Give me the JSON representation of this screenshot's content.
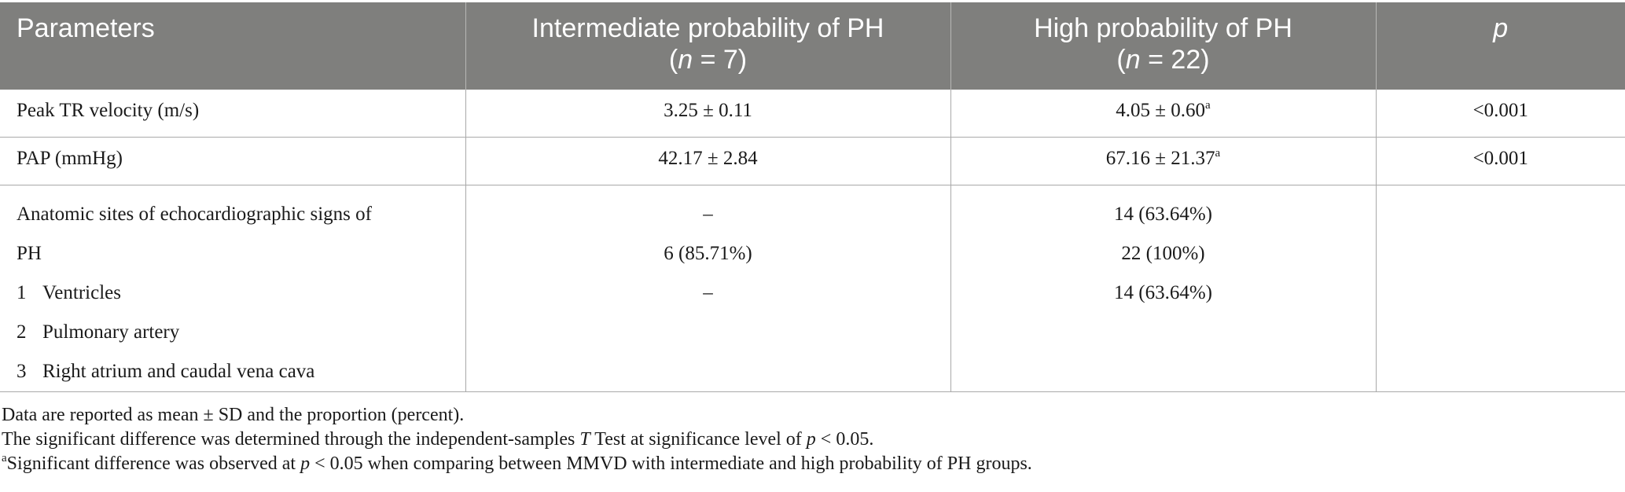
{
  "table": {
    "headers": {
      "parameters": "Parameters",
      "intermediate_line1": "Intermediate probability of PH",
      "intermediate_n_var": "n",
      "intermediate_n_val": " = 7)",
      "high_line1": "High probability of PH",
      "high_n_var": "n",
      "high_n_val": " = 22)",
      "p": "p"
    },
    "rows": [
      {
        "parameter": "Peak TR velocity (m/s)",
        "intermediate": "3.25 ± 0.11",
        "high": "4.05 ± 0.60",
        "high_sup": "a",
        "p": "<0.001"
      },
      {
        "parameter": "PAP (mmHg)",
        "intermediate": "42.17 ± 2.84",
        "high": "67.16 ± 21.37",
        "high_sup": "a",
        "p": "<0.001"
      }
    ],
    "anatomic": {
      "title_line1": "Anatomic sites of echocardiographic signs of",
      "title_line2": "PH",
      "items": [
        {
          "num": "1",
          "label": "Ventricles"
        },
        {
          "num": "2",
          "label": "Pulmonary artery"
        },
        {
          "num": "3",
          "label": "Right atrium and caudal vena cava"
        }
      ],
      "intermediate": [
        "–",
        "6 (85.71%)",
        "–"
      ],
      "high": [
        "14 (63.64%)",
        "22 (100%)",
        "14 (63.64%)"
      ]
    }
  },
  "notes": {
    "line1": "Data are reported as mean ± SD and the proportion (percent).",
    "line2_a": "The significant difference was determined through the independent-samples ",
    "line2_T": "T",
    "line2_b": " Test at significance level of ",
    "line2_p": "p",
    "line2_c": " < 0.05.",
    "line3_sup": "a",
    "line3_a": "Significant difference was observed at ",
    "line3_p": "p",
    "line3_b": " < 0.05 when comparing between MMVD with intermediate and high probability of PH groups."
  },
  "colors": {
    "header_bg": "#7f7f7d",
    "header_text": "#ffffff",
    "grid": "#a9a9a9"
  }
}
